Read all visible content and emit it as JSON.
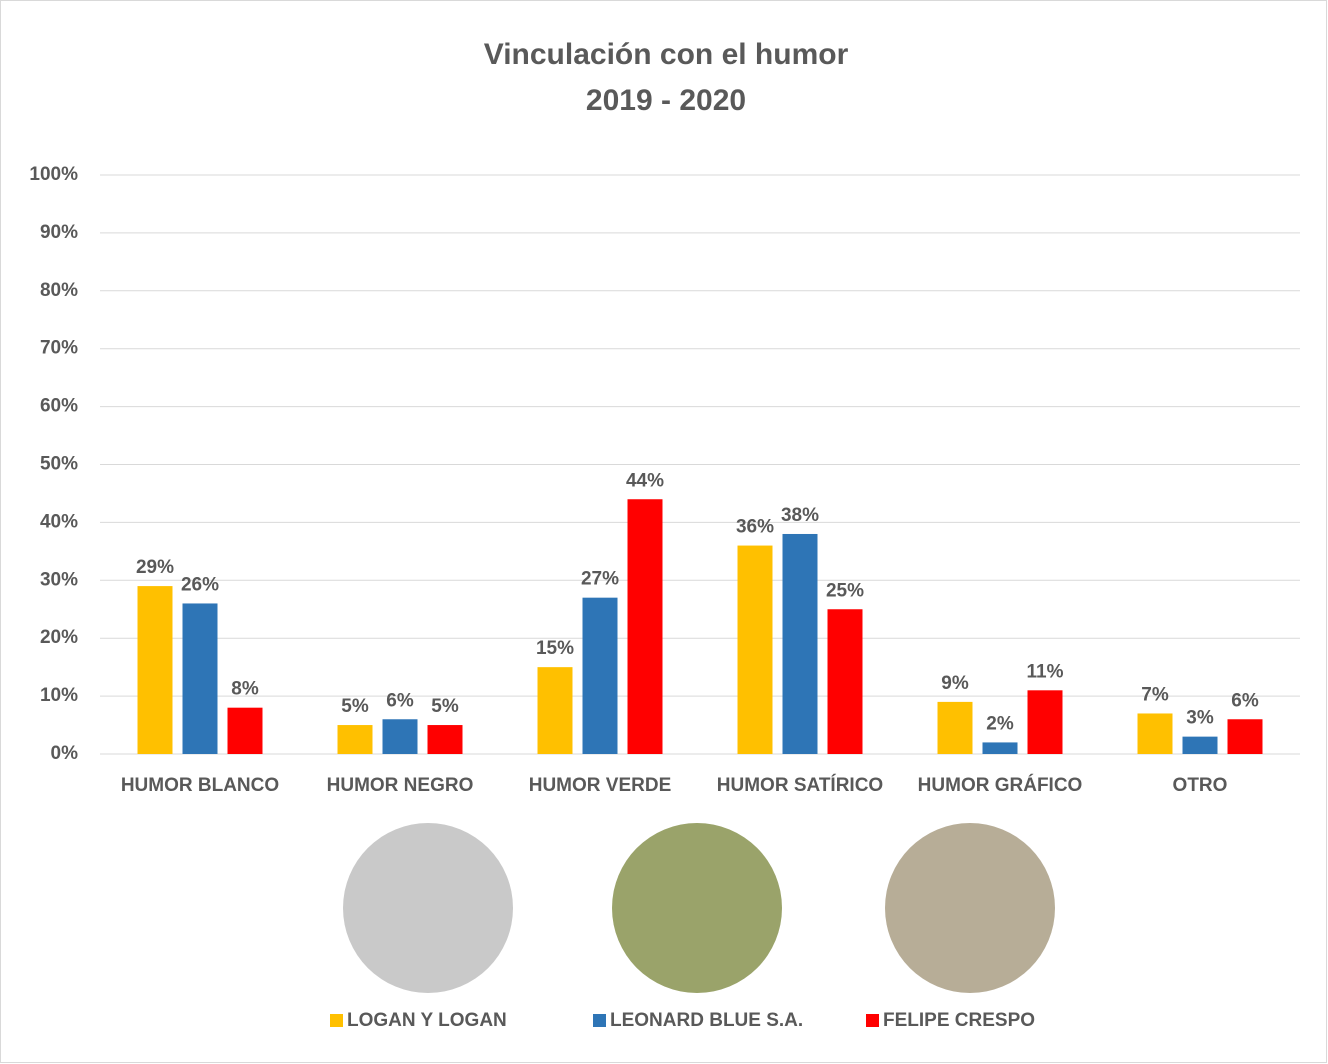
{
  "chart_data": {
    "type": "bar",
    "title": "Vinculación con el humor",
    "subtitle": "2019 - 2020",
    "categories": [
      "HUMOR BLANCO",
      "HUMOR NEGRO",
      "HUMOR VERDE",
      "HUMOR SATÍRICO",
      "HUMOR GRÁFICO",
      "OTRO"
    ],
    "series": [
      {
        "name": "LOGAN Y LOGAN",
        "color": "#FFC000",
        "values": [
          29,
          5,
          15,
          36,
          9,
          7
        ],
        "value_labels": [
          "29%",
          "5%",
          "15%",
          "36%",
          "9%",
          "7%"
        ]
      },
      {
        "name": "LEONARD BLUE S.A.",
        "color": "#2E75B6",
        "values": [
          26,
          6,
          27,
          38,
          2,
          3
        ],
        "value_labels": [
          "26%",
          "6%",
          "27%",
          "38%",
          "2%",
          "3%"
        ]
      },
      {
        "name": "FELIPE CRESPO",
        "color": "#FF0000",
        "values": [
          8,
          5,
          44,
          25,
          11,
          6
        ],
        "value_labels": [
          "8%",
          "5%",
          "44%",
          "25%",
          "11%",
          "6%"
        ]
      }
    ],
    "ylim": [
      0,
      100
    ],
    "yticks": [
      {
        "value": 0,
        "label": "0%"
      },
      {
        "value": 10,
        "label": "10%"
      },
      {
        "value": 20,
        "label": "20%"
      },
      {
        "value": 30,
        "label": "30%"
      },
      {
        "value": 40,
        "label": "40%"
      },
      {
        "value": 50,
        "label": "50%"
      },
      {
        "value": 60,
        "label": "60%"
      },
      {
        "value": 70,
        "label": "70%"
      },
      {
        "value": 80,
        "label": "80%"
      },
      {
        "value": 90,
        "label": "90%"
      },
      {
        "value": 100,
        "label": "100%"
      }
    ],
    "grid": true,
    "legend": "bottom"
  }
}
